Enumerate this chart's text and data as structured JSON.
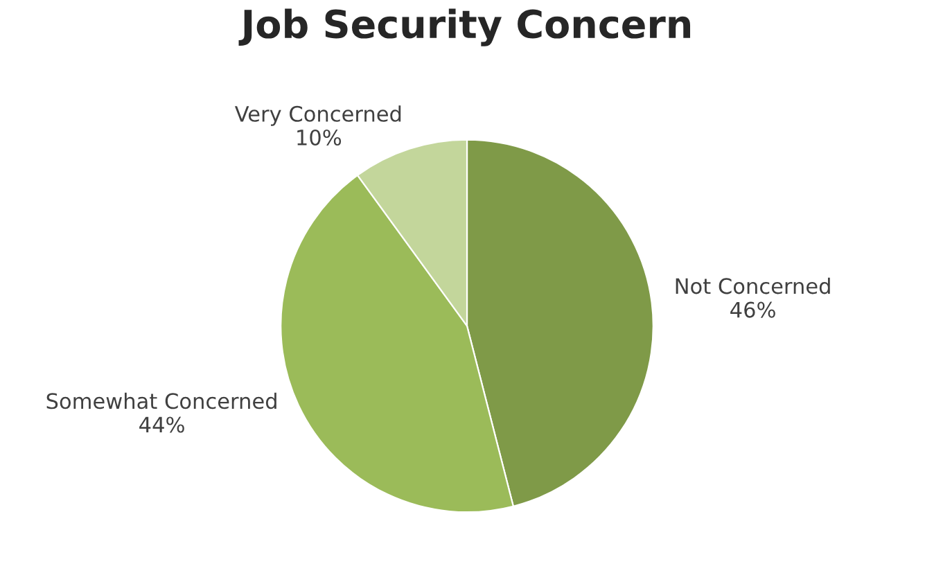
{
  "chart_data": {
    "type": "pie",
    "title": "Job Security Concern",
    "categories": [
      "Not Concerned",
      "Somewhat Concerned",
      "Very Concerned"
    ],
    "values": [
      46,
      44,
      10
    ],
    "value_labels": [
      "46%",
      "44%",
      "10%"
    ],
    "colors": [
      "#7f9a48",
      "#9bbb59",
      "#c3d69b"
    ],
    "legend": false
  }
}
